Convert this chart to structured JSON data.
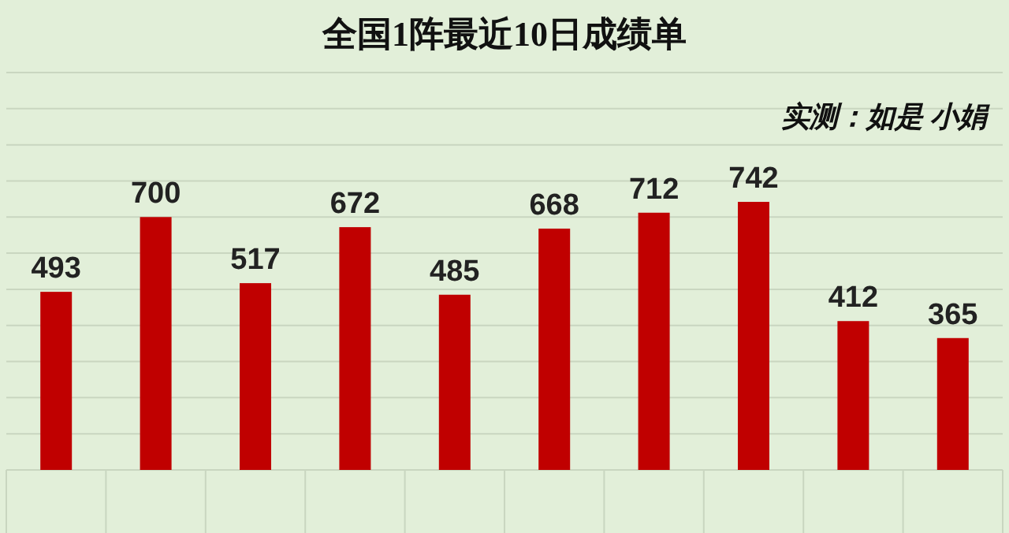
{
  "chart_data": {
    "type": "bar",
    "title": "全国1阵最近10日成绩单",
    "annotations": [
      "实测：如是 小娟"
    ],
    "categories": [
      null,
      null,
      null,
      null,
      null,
      null,
      null,
      null,
      null,
      null
    ],
    "values": [
      493,
      700,
      517,
      672,
      485,
      668,
      712,
      742,
      412,
      365
    ],
    "color": "#c00000",
    "data_labels": true,
    "grid": "y",
    "ylim": [
      0,
      1100
    ],
    "yticks": [
      {
        "value": 0,
        "label": null
      },
      {
        "value": 100,
        "label": null
      },
      {
        "value": 200,
        "label": null
      },
      {
        "value": 300,
        "label": null
      },
      {
        "value": 400,
        "label": null
      },
      {
        "value": 500,
        "label": null
      },
      {
        "value": 600,
        "label": null
      },
      {
        "value": 700,
        "label": null
      },
      {
        "value": 800,
        "label": null
      },
      {
        "value": 900,
        "label": null
      },
      {
        "value": 1000,
        "label": null
      },
      {
        "value": 1100,
        "label": null
      }
    ]
  }
}
